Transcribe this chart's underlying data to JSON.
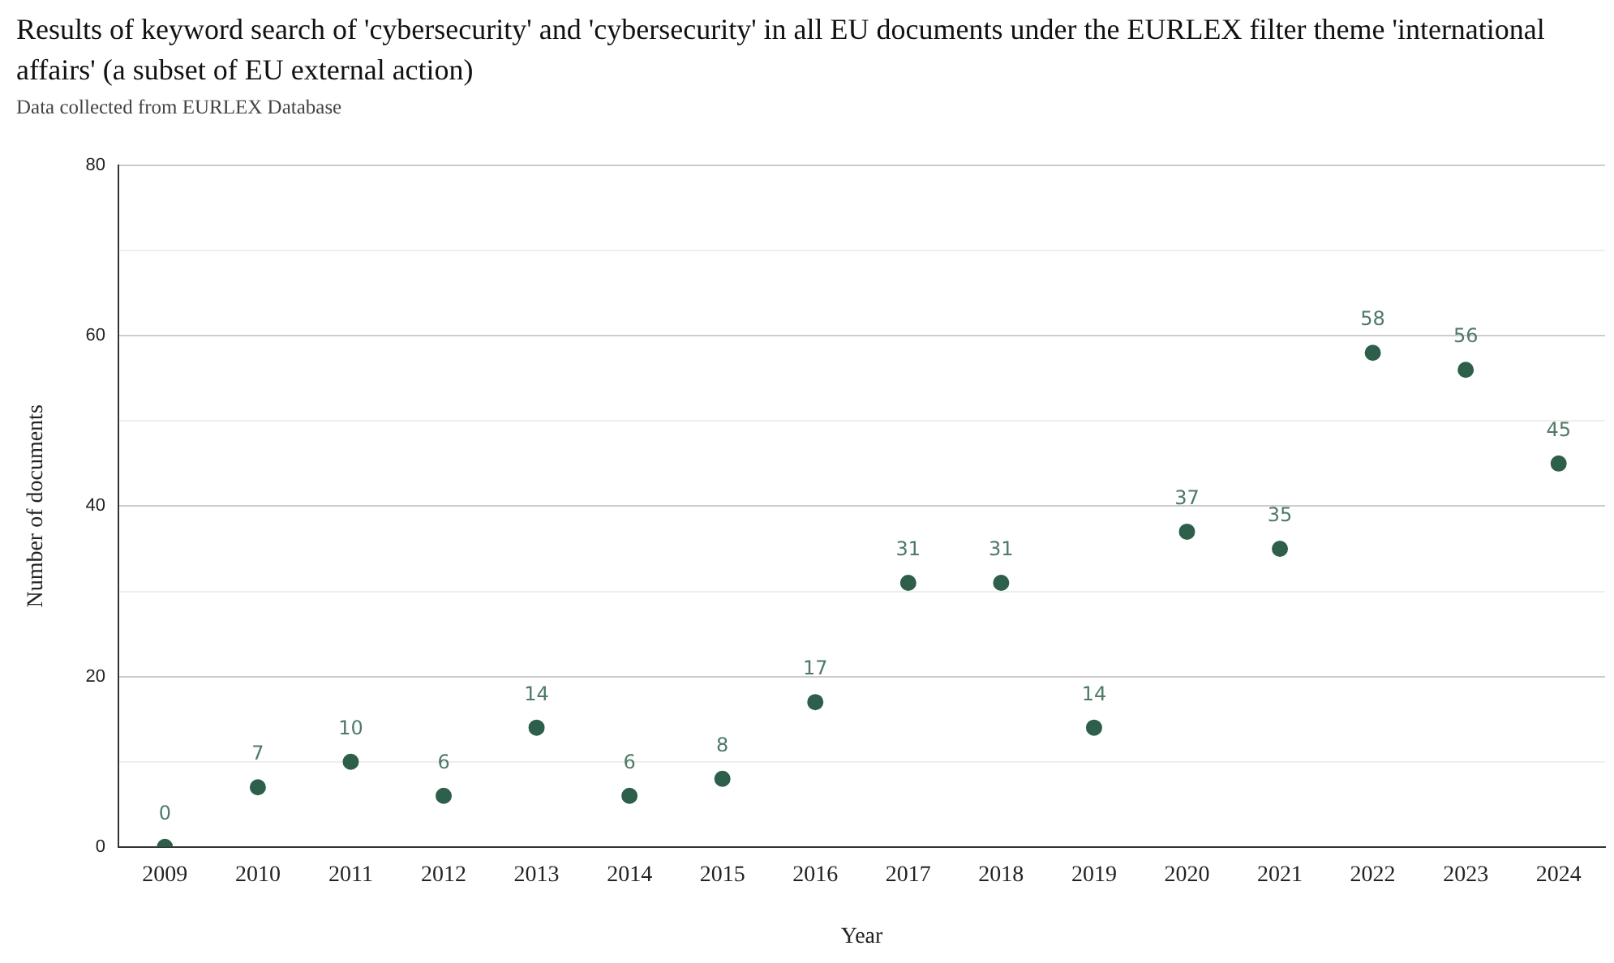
{
  "chart_data": {
    "type": "scatter",
    "title": "Results of keyword search of 'cybersecurity' and 'cybersecurity' in all EU documents under the EURLEX filter theme 'international affairs' (a subset of EU external action)",
    "subtitle": "Data collected from EURLEX Database",
    "xlabel": "Year",
    "ylabel": "Number of documents",
    "categories": [
      "2009",
      "2010",
      "2011",
      "2012",
      "2013",
      "2014",
      "2015",
      "2016",
      "2017",
      "2018",
      "2019",
      "2020",
      "2021",
      "2022",
      "2023",
      "2024"
    ],
    "values": [
      0,
      7,
      10,
      6,
      14,
      6,
      8,
      17,
      31,
      31,
      14,
      37,
      35,
      58,
      56,
      45
    ],
    "color": "#2d5f4a",
    "ylim": [
      0,
      80
    ],
    "yticks": [
      0,
      {
        "value": 10,
        "label": null
      },
      20,
      {
        "value": 30,
        "label": null
      },
      40,
      {
        "value": 50,
        "label": null
      },
      60,
      {
        "value": 70,
        "label": null
      },
      80
    ],
    "grid": "y",
    "legend": false,
    "marker": "circle",
    "data_labels": true
  }
}
